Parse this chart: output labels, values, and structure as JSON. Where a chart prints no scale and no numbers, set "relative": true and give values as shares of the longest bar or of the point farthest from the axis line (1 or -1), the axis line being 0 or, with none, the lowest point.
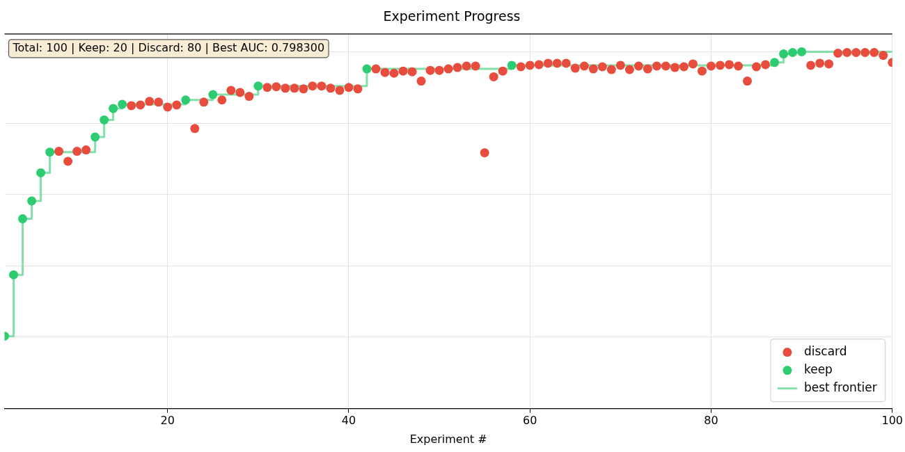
{
  "chart_data": {
    "type": "scatter",
    "title": "Experiment Progress",
    "xlabel": "Experiment #",
    "relative": true,
    "xlim": [
      2,
      100
    ],
    "xticks": [
      20,
      40,
      60,
      80,
      100
    ],
    "grid": true,
    "legend": "bottom right",
    "annotations": [
      "Total: 100 | Keep: 20 | Discard: 80 | Best AUC: 0.798300"
    ],
    "series": [
      {
        "name": "discard",
        "marker": "circle",
        "color": "#e74c3c",
        "x": [
          8,
          9,
          10,
          11,
          16,
          17,
          18,
          19,
          20,
          21,
          23,
          24,
          26,
          27,
          28,
          29,
          31,
          32,
          33,
          34,
          35,
          36,
          37,
          38,
          39,
          40,
          41,
          43,
          44,
          45,
          46,
          47,
          48,
          49,
          50,
          51,
          52,
          53,
          54,
          55,
          56,
          57,
          59,
          60,
          61,
          62,
          63,
          64,
          65,
          66,
          67,
          68,
          69,
          70,
          71,
          72,
          73,
          74,
          75,
          76,
          77,
          78,
          79,
          80,
          81,
          82,
          83,
          84,
          85,
          86,
          91,
          92,
          93,
          94,
          95,
          96,
          97,
          98,
          99,
          100
        ],
        "values": [
          0.721,
          0.693,
          0.721,
          0.725,
          0.849,
          0.851,
          0.861,
          0.859,
          0.845,
          0.851,
          0.785,
          0.859,
          0.865,
          0.892,
          0.886,
          0.875,
          0.9,
          0.902,
          0.898,
          0.898,
          0.896,
          0.904,
          0.904,
          0.898,
          0.892,
          0.9,
          0.896,
          0.952,
          0.942,
          0.94,
          0.946,
          0.944,
          0.918,
          0.948,
          0.948,
          0.952,
          0.956,
          0.96,
          0.96,
          0.717,
          0.93,
          0.946,
          0.958,
          0.962,
          0.964,
          0.968,
          0.968,
          0.968,
          0.954,
          0.96,
          0.952,
          0.958,
          0.95,
          0.962,
          0.95,
          0.96,
          0.952,
          0.96,
          0.96,
          0.956,
          0.958,
          0.966,
          0.946,
          0.96,
          0.962,
          0.964,
          0.96,
          0.918,
          0.958,
          0.964,
          0.962,
          0.968,
          0.966,
          0.996,
          0.998,
          0.998,
          0.998,
          0.998,
          0.99,
          0.97
        ]
      },
      {
        "name": "keep",
        "marker": "circle",
        "color": "#2ecc71",
        "x": [
          2,
          3,
          4,
          5,
          6,
          7,
          12,
          13,
          14,
          15,
          22,
          25,
          30,
          42,
          58,
          87,
          88,
          89,
          90
        ],
        "values": [
          0.203,
          0.375,
          0.532,
          0.582,
          0.661,
          0.719,
          0.761,
          0.809,
          0.841,
          0.853,
          0.865,
          0.88,
          0.904,
          0.952,
          0.962,
          0.97,
          0.994,
          0.998,
          1.0
        ]
      },
      {
        "name": "best frontier",
        "type": "step",
        "marker": "none",
        "color": "#82e0aa",
        "x": [
          2,
          3,
          4,
          5,
          6,
          7,
          12,
          13,
          14,
          15,
          22,
          25,
          30,
          42,
          58,
          87,
          88,
          89,
          90,
          100
        ],
        "values": [
          0.203,
          0.375,
          0.532,
          0.582,
          0.661,
          0.719,
          0.761,
          0.809,
          0.841,
          0.853,
          0.865,
          0.88,
          0.904,
          0.952,
          0.962,
          0.97,
          0.994,
          0.998,
          1.0,
          1.0
        ]
      }
    ]
  }
}
